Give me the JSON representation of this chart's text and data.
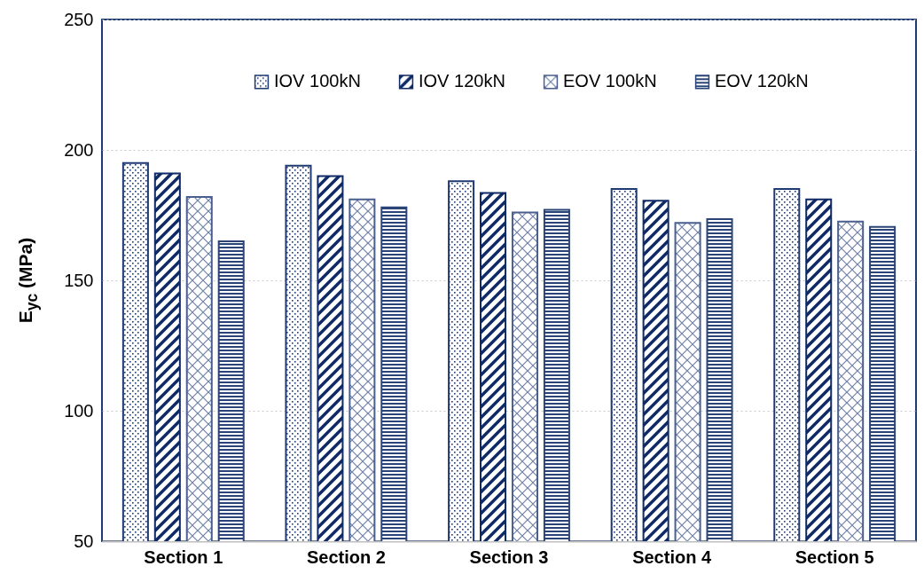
{
  "chart_data": {
    "type": "bar",
    "ylabel": "E$_{yc}$ (MPa)",
    "categories": [
      "Section 1",
      "Section 2",
      "Section 3",
      "Section 4",
      "Section 5"
    ],
    "series": [
      {
        "name": "IOV 100kN",
        "color": "#1f3a73",
        "values": [
          195,
          194,
          188,
          185,
          185
        ]
      },
      {
        "name": "IOV 120kN",
        "color": "#0f2a66",
        "values": [
          191,
          190,
          183.5,
          180.5,
          181
        ]
      },
      {
        "name": "EOV 100kN",
        "color": "#4a5f8f",
        "values": [
          182,
          181,
          176,
          172,
          172.5
        ]
      },
      {
        "name": "EOV 120kN",
        "color": "#2a4478",
        "values": [
          165,
          178,
          177,
          173.5,
          170.5
        ]
      }
    ],
    "ylim": [
      50,
      250
    ],
    "yticks": [
      50,
      100,
      150,
      200,
      250
    ],
    "grid": "y",
    "legend": "top"
  }
}
